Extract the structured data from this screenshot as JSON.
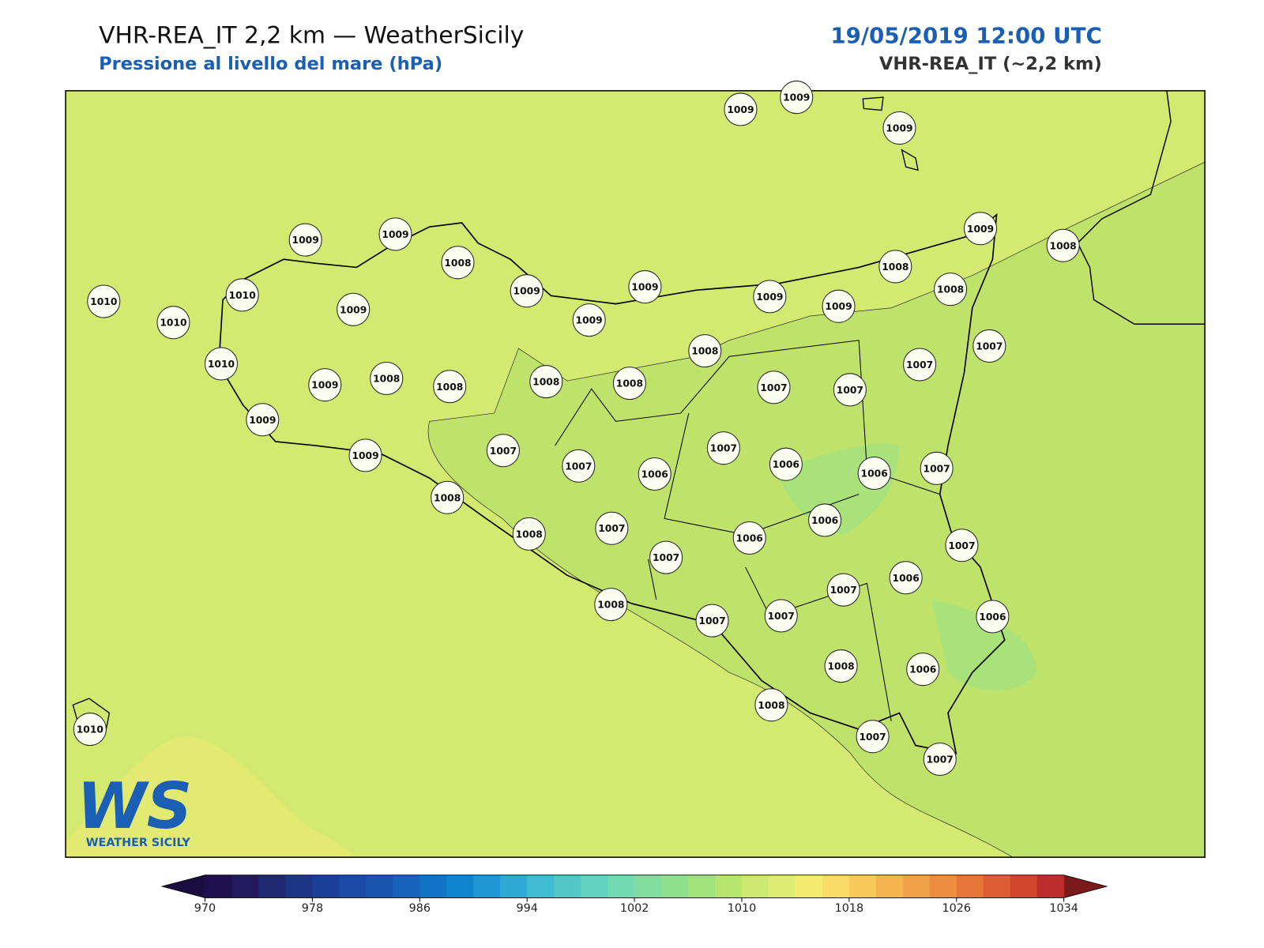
{
  "header": {
    "title": "VHR-REA_IT 2,2 km — WeatherSicily",
    "subtitle": "Pressione al livello del mare (hPa)",
    "date": "19/05/2019 12:00 UTC",
    "model": "VHR-REA_IT (~2,2 km)"
  },
  "stations": [
    1009,
    1009,
    1009,
    1009,
    1009,
    1008,
    1009,
    1009,
    1009,
    1010,
    1010,
    1010,
    1010,
    1009,
    1009,
    1008,
    1008,
    1008,
    1008,
    1009,
    1009,
    1007,
    1007,
    1006,
    1007,
    1008,
    1009,
    1009,
    1008,
    1008,
    1009,
    1008,
    1007,
    1007,
    1007,
    1007,
    1006,
    1006,
    1007,
    1006,
    1006,
    1007,
    1008,
    1008,
    1007,
    1008,
    1007,
    1007,
    1007,
    1006,
    1007,
    1006,
    1008,
    1006,
    1008,
    1007,
    1007,
    1010
  ],
  "logo": {
    "text": "WEATHER SICILY",
    "initials": "WS"
  },
  "colorbar": {
    "lim": [
      970,
      1034
    ],
    "ticks": [
      970,
      978,
      986,
      994,
      1002,
      1010,
      1018,
      1026,
      1034
    ],
    "colors": [
      "#1f0f4f",
      "#231a5c",
      "#1f2a72",
      "#1d3585",
      "#1a3f98",
      "#1a4ba6",
      "#1755b0",
      "#1563bb",
      "#1173c6",
      "#0f84cf",
      "#1e97d4",
      "#2ea9d6",
      "#3fbbd2",
      "#52c7c8",
      "#62d1bf",
      "#72dab0",
      "#80dd9e",
      "#8ee08c",
      "#a0e27c",
      "#b5e56d",
      "#cce870",
      "#dfec74",
      "#f3ea6e",
      "#fadb66",
      "#f7c95b",
      "#f4b550",
      "#f1a247",
      "#ec8d3f",
      "#e57539",
      "#de5d33",
      "#d0452d",
      "#bb2c2a"
    ],
    "under": "#1a0d40",
    "over": "#7a1a1a"
  }
}
